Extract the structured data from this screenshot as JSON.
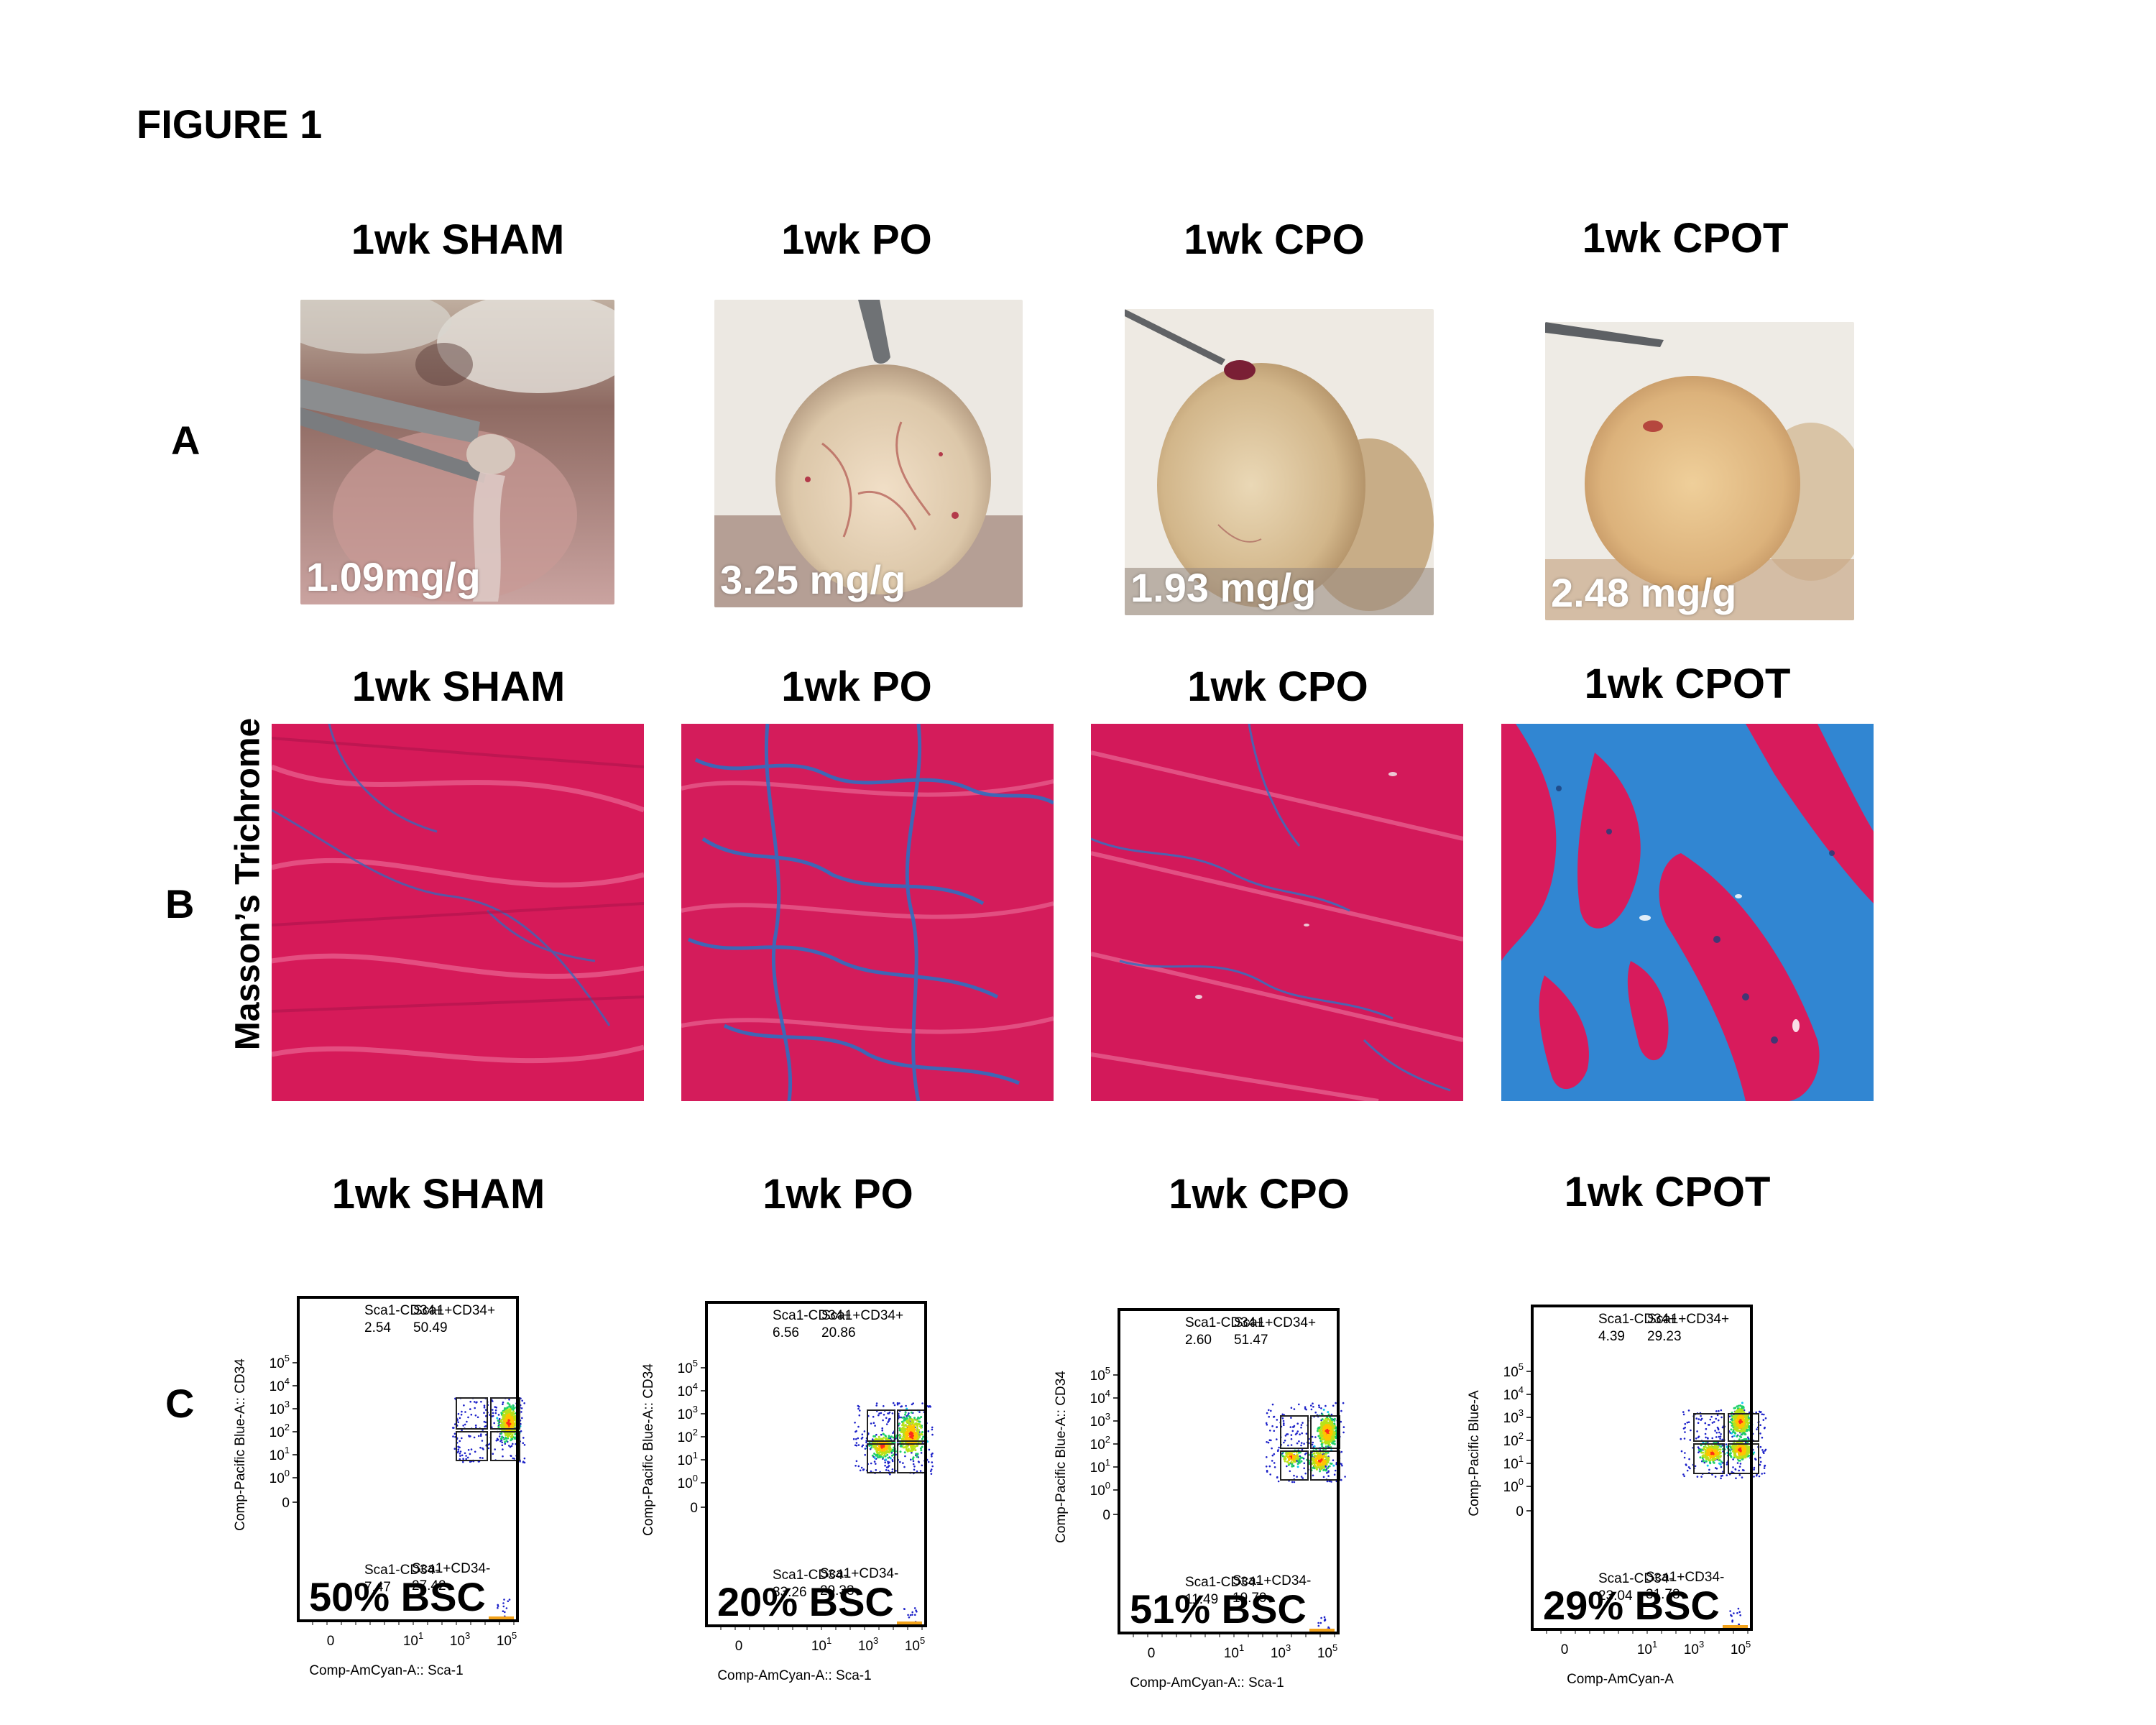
{
  "figure": {
    "title": "FIGURE 1"
  },
  "panels": {
    "A": {
      "letter": "A"
    },
    "B": {
      "letter": "B",
      "stain_label": "Masson’s Trichrome"
    },
    "C": {
      "letter": "C"
    }
  },
  "columns": [
    {
      "label": "1wk SHAM",
      "heart_weight": "1.09mg/g",
      "fibrosis": "low"
    },
    {
      "label": "1wk PO",
      "heart_weight": "3.25 mg/g",
      "fibrosis": "moderate"
    },
    {
      "label": "1wk CPO",
      "heart_weight": "1.93 mg/g",
      "fibrosis": "low-moderate"
    },
    {
      "label": "1wk CPOT",
      "heart_weight": "2.48 mg/g",
      "fibrosis": "high"
    }
  ],
  "colors": {
    "collagen_blue": "#2f7fc8",
    "muscle_red": "#d8195a",
    "tissue_tan": "#dcc08a"
  },
  "chart_data": [
    {
      "type": "scatter",
      "title": "1wk SHAM",
      "xlabel": "Comp-AmCyan-A:: Sca-1",
      "ylabel": "Comp-Pacific Blue-A:: CD34",
      "x_ticks": [
        "0",
        "10^1",
        "10^3",
        "10^5"
      ],
      "y_ticks": [
        "0",
        "10^0",
        "10^1",
        "10^2",
        "10^3",
        "10^4",
        "10^5"
      ],
      "quadrants": [
        {
          "name": "Sca1-CD34+",
          "value": "2.54"
        },
        {
          "name": "Sca1+CD34+",
          "value": "50.49"
        },
        {
          "name": "Sca1-CD34-",
          "value": "7.47"
        },
        {
          "name": "Sca1+CD34-",
          "value": "27.42"
        }
      ],
      "annotation": "50% BSC"
    },
    {
      "type": "scatter",
      "title": "1wk PO",
      "xlabel": "Comp-AmCyan-A:: Sca-1",
      "ylabel": "Comp-Pacific Blue-A:: CD34",
      "x_ticks": [
        "0",
        "10^1",
        "10^3",
        "10^5"
      ],
      "y_ticks": [
        "0",
        "10^0",
        "10^1",
        "10^2",
        "10^3",
        "10^4",
        "10^5"
      ],
      "quadrants": [
        {
          "name": "Sca1-CD34+",
          "value": "6.56"
        },
        {
          "name": "Sca1+CD34+",
          "value": "20.86"
        },
        {
          "name": "Sca1-CD34-",
          "value": "33.26"
        },
        {
          "name": "Sca1+CD34-",
          "value": "29.33"
        }
      ],
      "annotation": "20% BSC"
    },
    {
      "type": "scatter",
      "title": "1wk CPO",
      "xlabel": "Comp-AmCyan-A:: Sca-1",
      "ylabel": "Comp-Pacific Blue-A:: CD34",
      "x_ticks": [
        "0",
        "10^1",
        "10^3",
        "10^5"
      ],
      "y_ticks": [
        "0",
        "10^0",
        "10^1",
        "10^2",
        "10^3",
        "10^4",
        "10^5"
      ],
      "quadrants": [
        {
          "name": "Sca1-CD34+",
          "value": "2.60"
        },
        {
          "name": "Sca1+CD34+",
          "value": "51.47"
        },
        {
          "name": "Sca1-CD34-",
          "value": "11.49"
        },
        {
          "name": "Sca1+CD34-",
          "value": "19.79"
        }
      ],
      "annotation": "51% BSC"
    },
    {
      "type": "scatter",
      "title": "1wk CPOT",
      "xlabel": "Comp-AmCyan-A",
      "ylabel": "Comp-Pacific Blue-A",
      "x_ticks": [
        "0",
        "10^1",
        "10^3",
        "10^5"
      ],
      "y_ticks": [
        "0",
        "10^0",
        "10^1",
        "10^2",
        "10^3",
        "10^4",
        "10^5"
      ],
      "quadrants": [
        {
          "name": "Sca1-CD34+",
          "value": "4.39"
        },
        {
          "name": "Sca1+CD34+",
          "value": "29.23"
        },
        {
          "name": "Sca1-CD34-",
          "value": "23.04"
        },
        {
          "name": "Sca1+CD34-",
          "value": "31.78"
        }
      ],
      "annotation": "29% BSC"
    }
  ]
}
